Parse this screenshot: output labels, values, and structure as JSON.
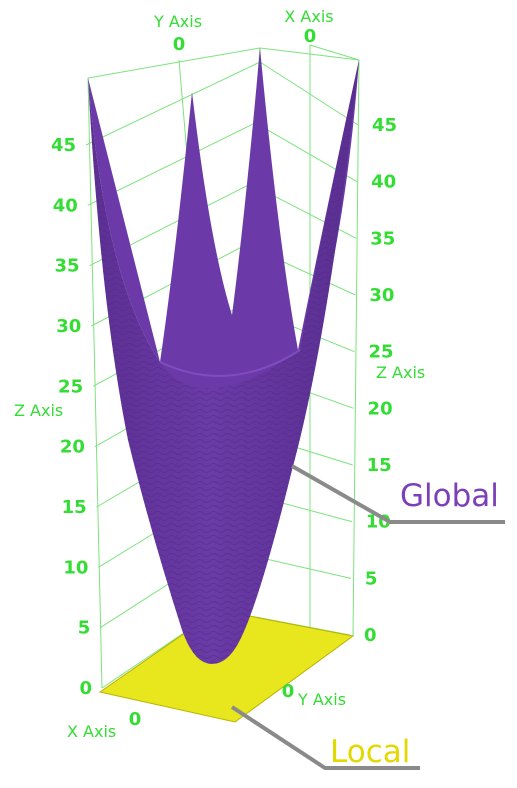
{
  "chart_data": {
    "type": "surface",
    "title": "",
    "z_axis_left": {
      "title": "Z Axis",
      "ticks": [
        "0",
        "5",
        "10",
        "15",
        "20",
        "25",
        "30",
        "35",
        "40",
        "45"
      ]
    },
    "z_axis_right": {
      "title": "Z Axis",
      "ticks": [
        "0",
        "5",
        "10",
        "15",
        "20",
        "25",
        "30",
        "35",
        "40",
        "45"
      ]
    },
    "x_axis_top": {
      "title": "X Axis",
      "tick": "0"
    },
    "y_axis_top": {
      "title": "Y Axis",
      "tick": "0"
    },
    "x_axis_bottom": {
      "title": "X Axis",
      "tick": "0"
    },
    "y_axis_bottom": {
      "title": "Y Axis",
      "tick": "0"
    },
    "zlim": [
      0,
      50
    ],
    "grid": true,
    "series": [
      {
        "label": "Global",
        "function": "z = x^2 + y^2",
        "color": "#6a3fa0",
        "z_min": 0,
        "z_max": 50
      },
      {
        "label": "Local",
        "function": "z = 0",
        "color": "#e8e61c",
        "z": 0
      }
    ],
    "callouts": [
      {
        "text": "Global",
        "color": "#7b3fb8"
      },
      {
        "text": "Local",
        "color": "#e3d800"
      }
    ]
  },
  "colors": {
    "axis": "#33dd33",
    "grid": "#7de37d",
    "leader": "#8a8a8a"
  }
}
